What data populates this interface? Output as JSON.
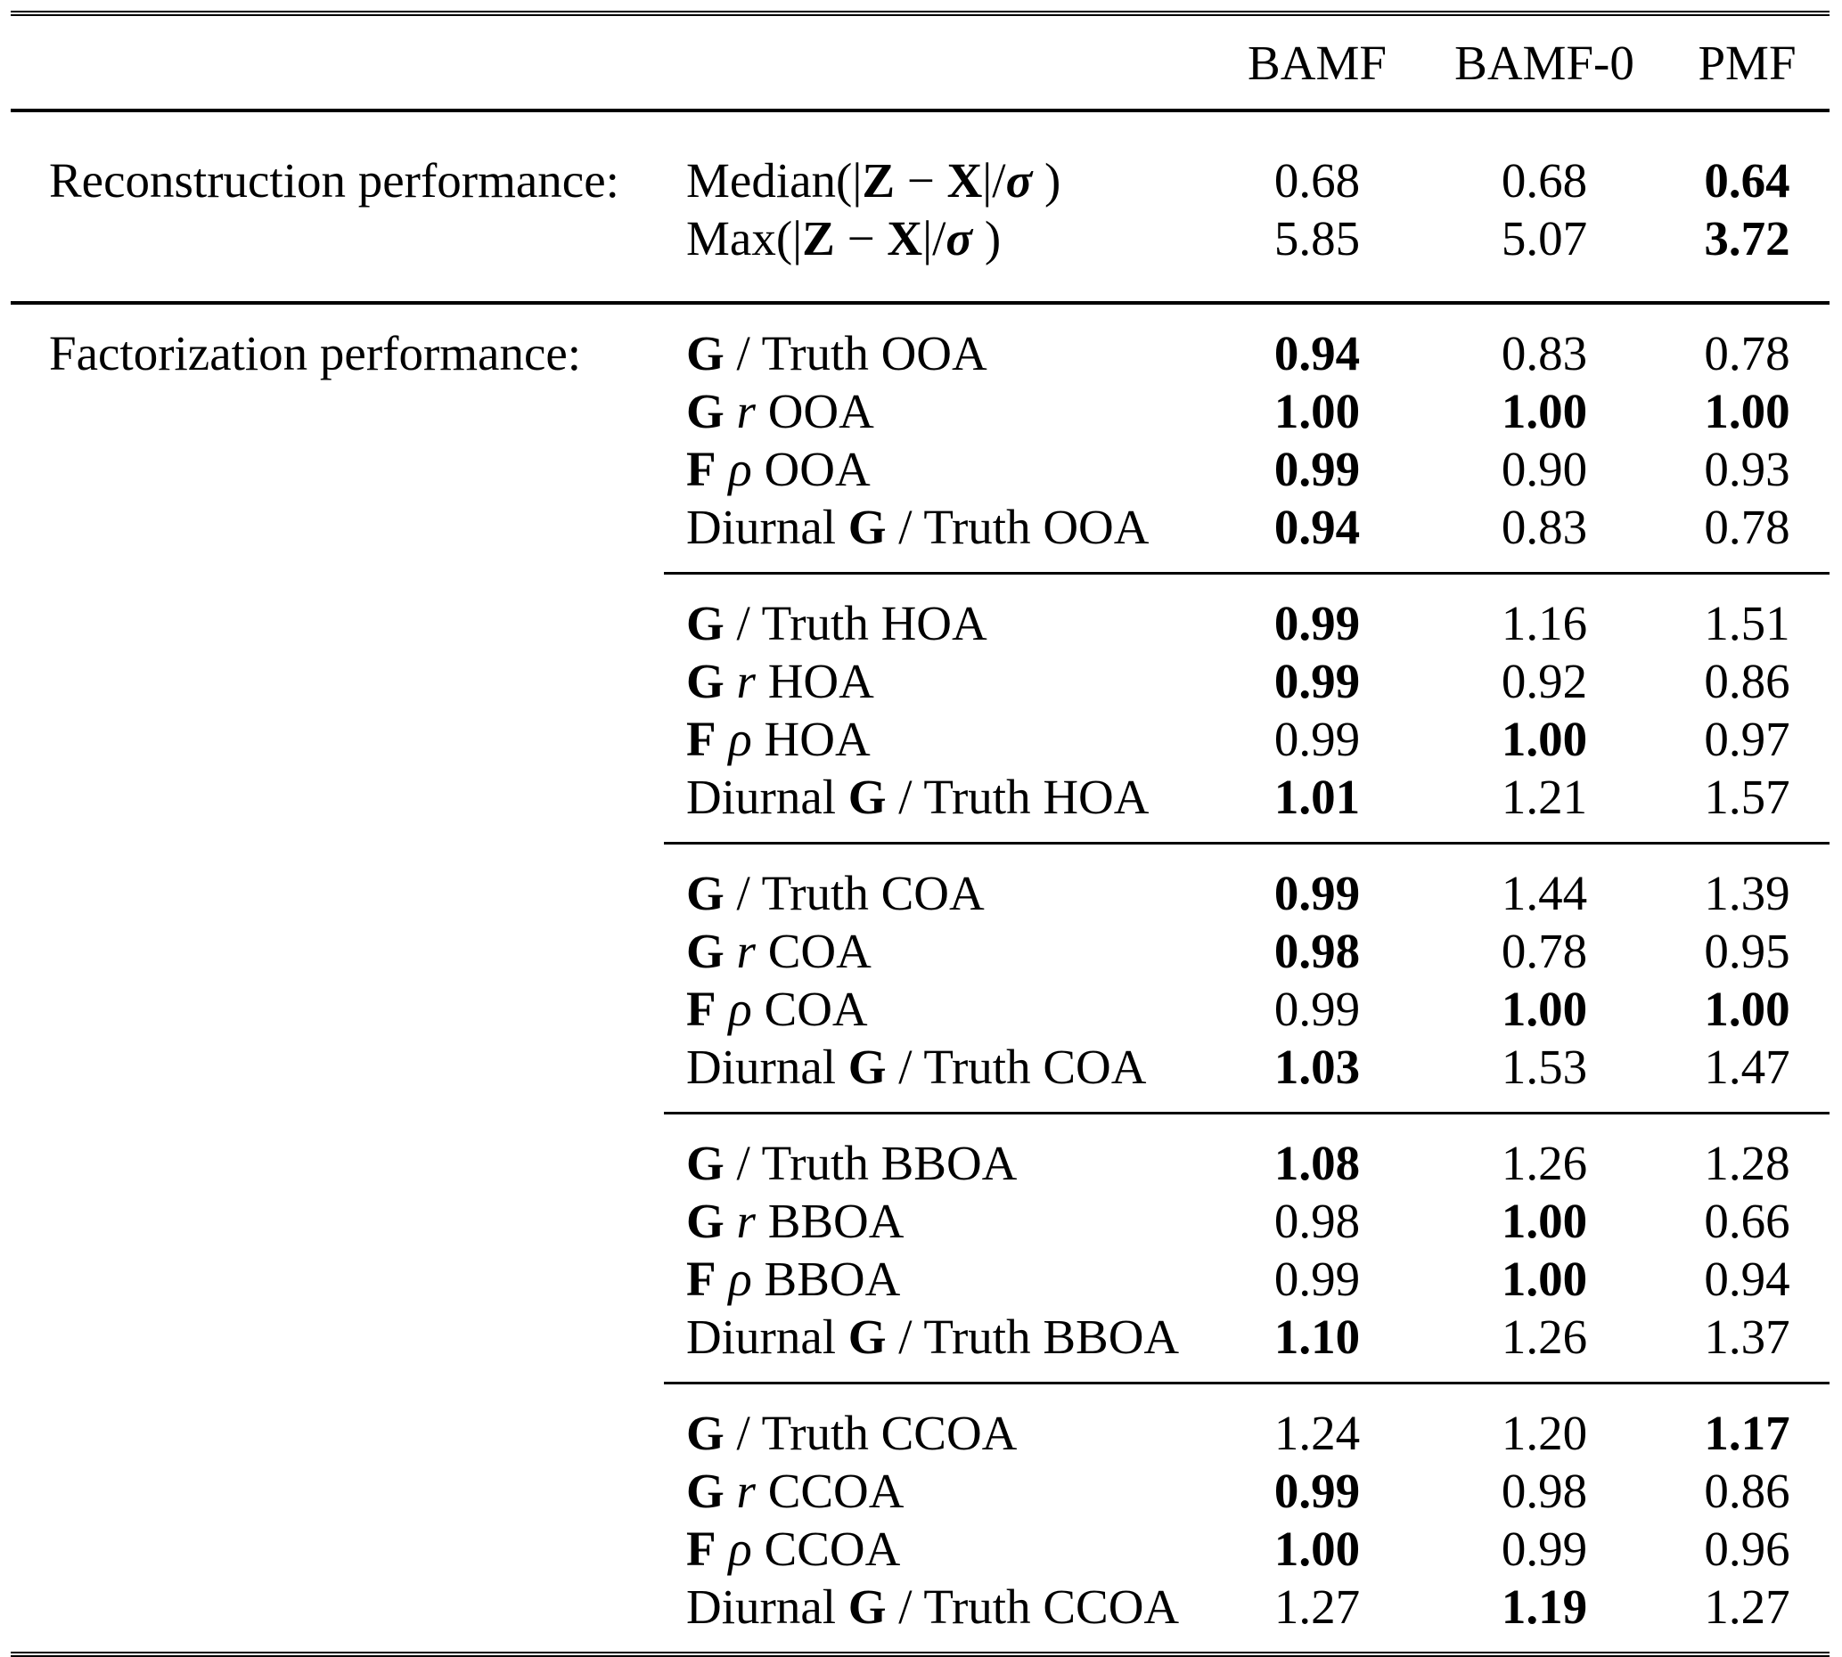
{
  "colors": {
    "text": "#000000",
    "background": "#ffffff",
    "rule": "#000000"
  },
  "table": {
    "columns": [
      "BAMF",
      "BAMF-0",
      "PMF"
    ],
    "sections": [
      {
        "label": "Reconstruction performance:",
        "groups": [
          {
            "rows": [
              {
                "metric": [
                  [
                    "Median(|",
                    ""
                  ],
                  [
                    "Z",
                    "b"
                  ],
                  [
                    " − ",
                    ""
                  ],
                  [
                    "X",
                    "b"
                  ],
                  [
                    "|/",
                    ""
                  ],
                  [
                    "σ",
                    "bi"
                  ],
                  [
                    " )",
                    ""
                  ]
                ],
                "values": [
                  [
                    "0.68",
                    false
                  ],
                  [
                    "0.68",
                    false
                  ],
                  [
                    "0.64",
                    true
                  ]
                ]
              },
              {
                "metric": [
                  [
                    "Max(|",
                    ""
                  ],
                  [
                    "Z",
                    "b"
                  ],
                  [
                    " − ",
                    ""
                  ],
                  [
                    "X",
                    "b"
                  ],
                  [
                    "|/",
                    ""
                  ],
                  [
                    "σ",
                    "bi"
                  ],
                  [
                    " )",
                    ""
                  ]
                ],
                "values": [
                  [
                    "5.85",
                    false
                  ],
                  [
                    "5.07",
                    false
                  ],
                  [
                    "3.72",
                    true
                  ]
                ]
              }
            ]
          }
        ]
      },
      {
        "label": "Factorization performance:",
        "groups": [
          {
            "rows": [
              {
                "metric": [
                  [
                    "G",
                    "b"
                  ],
                  [
                    " / Truth OOA",
                    ""
                  ]
                ],
                "values": [
                  [
                    "0.94",
                    true
                  ],
                  [
                    "0.83",
                    false
                  ],
                  [
                    "0.78",
                    false
                  ]
                ]
              },
              {
                "metric": [
                  [
                    "G",
                    "b"
                  ],
                  [
                    " ",
                    ""
                  ],
                  [
                    "r",
                    "i"
                  ],
                  [
                    " OOA",
                    ""
                  ]
                ],
                "values": [
                  [
                    "1.00",
                    true
                  ],
                  [
                    "1.00",
                    true
                  ],
                  [
                    "1.00",
                    true
                  ]
                ]
              },
              {
                "metric": [
                  [
                    "F",
                    "b"
                  ],
                  [
                    " ",
                    ""
                  ],
                  [
                    "ρ",
                    "i"
                  ],
                  [
                    " OOA",
                    ""
                  ]
                ],
                "values": [
                  [
                    "0.99",
                    true
                  ],
                  [
                    "0.90",
                    false
                  ],
                  [
                    "0.93",
                    false
                  ]
                ]
              },
              {
                "metric": [
                  [
                    "Diurnal ",
                    ""
                  ],
                  [
                    "G",
                    "b"
                  ],
                  [
                    " / Truth OOA",
                    ""
                  ]
                ],
                "values": [
                  [
                    "0.94",
                    true
                  ],
                  [
                    "0.83",
                    false
                  ],
                  [
                    "0.78",
                    false
                  ]
                ]
              }
            ]
          },
          {
            "rows": [
              {
                "metric": [
                  [
                    "G",
                    "b"
                  ],
                  [
                    " / Truth HOA",
                    ""
                  ]
                ],
                "values": [
                  [
                    "0.99",
                    true
                  ],
                  [
                    "1.16",
                    false
                  ],
                  [
                    "1.51",
                    false
                  ]
                ]
              },
              {
                "metric": [
                  [
                    "G",
                    "b"
                  ],
                  [
                    " ",
                    ""
                  ],
                  [
                    "r",
                    "i"
                  ],
                  [
                    " HOA",
                    ""
                  ]
                ],
                "values": [
                  [
                    "0.99",
                    true
                  ],
                  [
                    "0.92",
                    false
                  ],
                  [
                    "0.86",
                    false
                  ]
                ]
              },
              {
                "metric": [
                  [
                    "F",
                    "b"
                  ],
                  [
                    " ",
                    ""
                  ],
                  [
                    "ρ",
                    "i"
                  ],
                  [
                    " HOA",
                    ""
                  ]
                ],
                "values": [
                  [
                    "0.99",
                    false
                  ],
                  [
                    "1.00",
                    true
                  ],
                  [
                    "0.97",
                    false
                  ]
                ]
              },
              {
                "metric": [
                  [
                    "Diurnal ",
                    ""
                  ],
                  [
                    "G",
                    "b"
                  ],
                  [
                    " / Truth HOA",
                    ""
                  ]
                ],
                "values": [
                  [
                    "1.01",
                    true
                  ],
                  [
                    "1.21",
                    false
                  ],
                  [
                    "1.57",
                    false
                  ]
                ]
              }
            ]
          },
          {
            "rows": [
              {
                "metric": [
                  [
                    "G",
                    "b"
                  ],
                  [
                    " / Truth COA",
                    ""
                  ]
                ],
                "values": [
                  [
                    "0.99",
                    true
                  ],
                  [
                    "1.44",
                    false
                  ],
                  [
                    "1.39",
                    false
                  ]
                ]
              },
              {
                "metric": [
                  [
                    "G",
                    "b"
                  ],
                  [
                    " ",
                    ""
                  ],
                  [
                    "r",
                    "i"
                  ],
                  [
                    " COA",
                    ""
                  ]
                ],
                "values": [
                  [
                    "0.98",
                    true
                  ],
                  [
                    "0.78",
                    false
                  ],
                  [
                    "0.95",
                    false
                  ]
                ]
              },
              {
                "metric": [
                  [
                    "F",
                    "b"
                  ],
                  [
                    " ",
                    ""
                  ],
                  [
                    "ρ",
                    "i"
                  ],
                  [
                    " COA",
                    ""
                  ]
                ],
                "values": [
                  [
                    "0.99",
                    false
                  ],
                  [
                    "1.00",
                    true
                  ],
                  [
                    "1.00",
                    true
                  ]
                ]
              },
              {
                "metric": [
                  [
                    "Diurnal ",
                    ""
                  ],
                  [
                    "G",
                    "b"
                  ],
                  [
                    " / Truth COA",
                    ""
                  ]
                ],
                "values": [
                  [
                    "1.03",
                    true
                  ],
                  [
                    "1.53",
                    false
                  ],
                  [
                    "1.47",
                    false
                  ]
                ]
              }
            ]
          },
          {
            "rows": [
              {
                "metric": [
                  [
                    "G",
                    "b"
                  ],
                  [
                    " / Truth BBOA",
                    ""
                  ]
                ],
                "values": [
                  [
                    "1.08",
                    true
                  ],
                  [
                    "1.26",
                    false
                  ],
                  [
                    "1.28",
                    false
                  ]
                ]
              },
              {
                "metric": [
                  [
                    "G",
                    "b"
                  ],
                  [
                    " ",
                    ""
                  ],
                  [
                    "r",
                    "i"
                  ],
                  [
                    " BBOA",
                    ""
                  ]
                ],
                "values": [
                  [
                    "0.98",
                    false
                  ],
                  [
                    "1.00",
                    true
                  ],
                  [
                    "0.66",
                    false
                  ]
                ]
              },
              {
                "metric": [
                  [
                    "F",
                    "b"
                  ],
                  [
                    " ",
                    ""
                  ],
                  [
                    "ρ",
                    "i"
                  ],
                  [
                    " BBOA",
                    ""
                  ]
                ],
                "values": [
                  [
                    "0.99",
                    false
                  ],
                  [
                    "1.00",
                    true
                  ],
                  [
                    "0.94",
                    false
                  ]
                ]
              },
              {
                "metric": [
                  [
                    "Diurnal ",
                    ""
                  ],
                  [
                    "G",
                    "b"
                  ],
                  [
                    " / Truth BBOA",
                    ""
                  ]
                ],
                "values": [
                  [
                    "1.10",
                    true
                  ],
                  [
                    "1.26",
                    false
                  ],
                  [
                    "1.37",
                    false
                  ]
                ]
              }
            ]
          },
          {
            "rows": [
              {
                "metric": [
                  [
                    "G",
                    "b"
                  ],
                  [
                    " / Truth CCOA",
                    ""
                  ]
                ],
                "values": [
                  [
                    "1.24",
                    false
                  ],
                  [
                    "1.20",
                    false
                  ],
                  [
                    "1.17",
                    true
                  ]
                ]
              },
              {
                "metric": [
                  [
                    "G",
                    "b"
                  ],
                  [
                    " ",
                    ""
                  ],
                  [
                    "r",
                    "i"
                  ],
                  [
                    " CCOA",
                    ""
                  ]
                ],
                "values": [
                  [
                    "0.99",
                    true
                  ],
                  [
                    "0.98",
                    false
                  ],
                  [
                    "0.86",
                    false
                  ]
                ]
              },
              {
                "metric": [
                  [
                    "F",
                    "b"
                  ],
                  [
                    " ",
                    ""
                  ],
                  [
                    "ρ",
                    "i"
                  ],
                  [
                    " CCOA",
                    ""
                  ]
                ],
                "values": [
                  [
                    "1.00",
                    true
                  ],
                  [
                    "0.99",
                    false
                  ],
                  [
                    "0.96",
                    false
                  ]
                ]
              },
              {
                "metric": [
                  [
                    "Diurnal ",
                    ""
                  ],
                  [
                    "G",
                    "b"
                  ],
                  [
                    " / Truth CCOA",
                    ""
                  ]
                ],
                "values": [
                  [
                    "1.27",
                    false
                  ],
                  [
                    "1.19",
                    true
                  ],
                  [
                    "1.27",
                    false
                  ]
                ]
              }
            ]
          }
        ]
      }
    ]
  }
}
